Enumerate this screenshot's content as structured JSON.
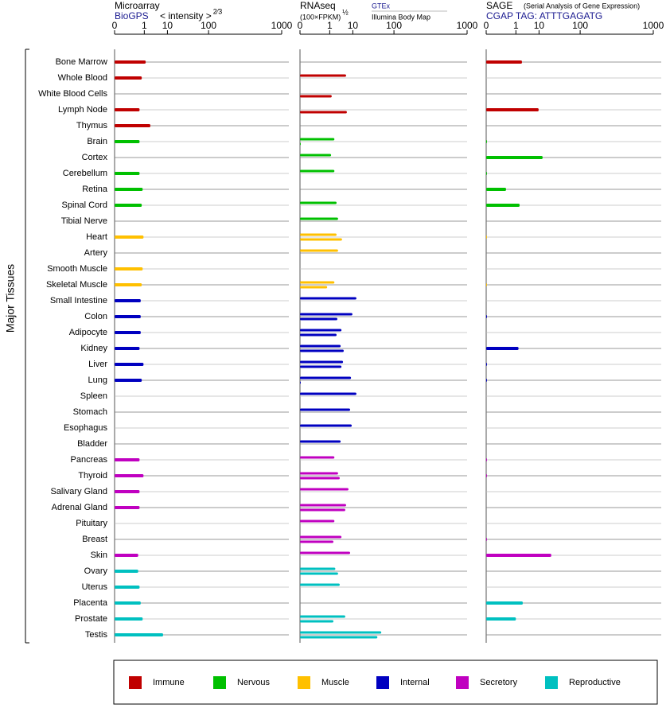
{
  "y_label": "Major Tissues",
  "categories": [
    "Bone Marrow",
    "Whole Blood",
    "White Blood Cells",
    "Lymph Node",
    "Thymus",
    "Brain",
    "Cortex",
    "Cerebellum",
    "Retina",
    "Spinal Cord",
    "Tibial Nerve",
    "Heart",
    "Artery",
    "Smooth Muscle",
    "Skeletal Muscle",
    "Small Intestine",
    "Colon",
    "Adipocyte",
    "Kidney",
    "Liver",
    "Lung",
    "Spleen",
    "Stomach",
    "Esophagus",
    "Bladder",
    "Pancreas",
    "Thyroid",
    "Salivary Gland",
    "Adrenal Gland",
    "Pituitary",
    "Breast",
    "Skin",
    "Ovary",
    "Uterus",
    "Placenta",
    "Prostate",
    "Testis"
  ],
  "category_colors": [
    "#c00000",
    "#c00000",
    "#c00000",
    "#c00000",
    "#c00000",
    "#00c000",
    "#00c000",
    "#00c000",
    "#00c000",
    "#00c000",
    "#00c000",
    "#ffc000",
    "#ffc000",
    "#ffc000",
    "#ffc000",
    "#0000c0",
    "#0000c0",
    "#0000c0",
    "#0000c0",
    "#0000c0",
    "#0000c0",
    "#0000c0",
    "#0000c0",
    "#0000c0",
    "#0000c0",
    "#c000c0",
    "#c000c0",
    "#c000c0",
    "#c000c0",
    "#c000c0",
    "#c000c0",
    "#c000c0",
    "#00c0c0",
    "#00c0c0",
    "#00c0c0",
    "#00c0c0",
    "#00c0c0"
  ],
  "legend": [
    {
      "name": "Immune",
      "color": "#c00000"
    },
    {
      "name": "Nervous",
      "color": "#00c000"
    },
    {
      "name": "Muscle",
      "color": "#ffc000"
    },
    {
      "name": "Internal",
      "color": "#0000c0"
    },
    {
      "name": "Secretory",
      "color": "#c000c0"
    },
    {
      "name": "Reproductive",
      "color": "#00c0c0"
    }
  ],
  "chart_data": [
    {
      "type": "bar",
      "title": "Microarray",
      "source": "BioGPS",
      "unit_label": "< intensity >",
      "unit_exponent": "2⁄3",
      "xlim": [
        0,
        1000
      ],
      "xticks": [
        0,
        1,
        10,
        100,
        1000
      ],
      "series": [
        {
          "values": [
            1.2,
            0.7,
            null,
            0.5,
            2.1,
            0.5,
            null,
            0.5,
            0.8,
            0.7,
            null,
            0.9,
            null,
            0.8,
            0.7,
            0.6,
            0.6,
            0.6,
            0.5,
            0.9,
            0.7,
            null,
            null,
            null,
            null,
            0.5,
            0.9,
            0.5,
            0.5,
            null,
            null,
            0.4,
            0.4,
            0.5,
            0.6,
            0.8,
            7.1
          ]
        }
      ]
    },
    {
      "type": "bar",
      "title": "RNAseq",
      "unit_label": "(100×FPKM)",
      "unit_exponent": "½",
      "xlim": [
        0,
        1000
      ],
      "xticks": [
        0,
        1,
        10,
        100,
        1000
      ],
      "series": [
        {
          "name": "GTEx",
          "values": [
            null,
            5.8,
            null,
            null,
            null,
            1.8,
            1.2,
            1.8,
            null,
            2.3,
            2.7,
            2.3,
            2.7,
            null,
            1.8,
            13,
            9.7,
            3.8,
            3.5,
            4.4,
            8.7,
            13,
            8.1,
            9.2,
            3.5,
            1.8,
            2.7,
            7.1,
            5.8,
            1.8,
            3.8,
            8.1,
            2.0,
            3.2,
            null,
            5.4,
            56
          ]
        },
        {
          "name": "Illumina Body Map",
          "values": [
            null,
            null,
            1.3,
            6.2,
            null,
            0,
            null,
            null,
            null,
            null,
            null,
            4.0,
            null,
            null,
            0.7,
            null,
            2.5,
            2.3,
            4.7,
            3.8,
            0,
            null,
            null,
            null,
            null,
            null,
            3.2,
            null,
            5.4,
            null,
            1.6,
            null,
            2.7,
            null,
            null,
            1.6,
            46
          ]
        }
      ]
    },
    {
      "type": "bar",
      "title": "SAGE",
      "subtitle": "(Serial Analysis of Gene Expression)",
      "source": "CGAP TAG: ATTTGAGATG",
      "xlim": [
        0,
        1000
      ],
      "xticks": [
        0,
        1,
        10,
        100,
        1000
      ],
      "series": [
        {
          "values": [
            2.1,
            null,
            null,
            9.7,
            null,
            0,
            13,
            0,
            0.2,
            1.6,
            null,
            0,
            null,
            null,
            0,
            null,
            0,
            null,
            1.4,
            0,
            0,
            null,
            null,
            null,
            null,
            0,
            0,
            null,
            null,
            null,
            0,
            23,
            null,
            null,
            2.3,
            1.0,
            null
          ]
        }
      ]
    }
  ]
}
